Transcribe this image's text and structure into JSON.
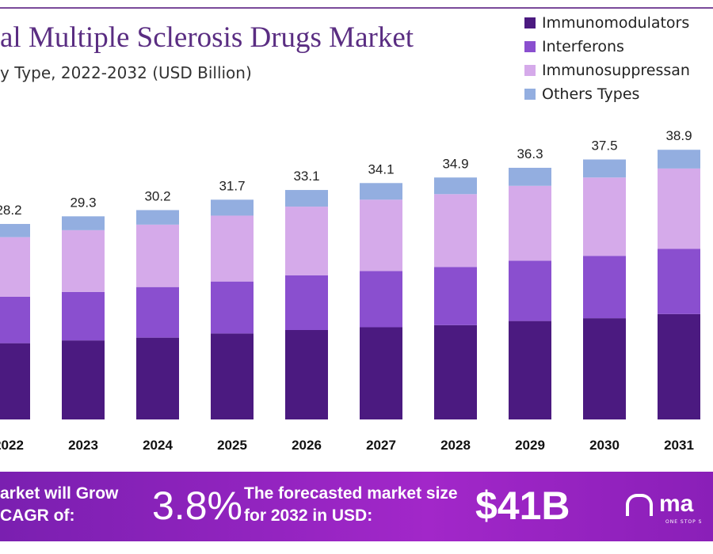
{
  "chart_data": {
    "type": "bar",
    "stacked": true,
    "title": "al Multiple Sclerosis Drugs Market",
    "subtitle": "y Type, 2022-2032 (USD Billion)",
    "categories": [
      "2022",
      "2023",
      "2024",
      "2025",
      "2026",
      "2027",
      "2028",
      "2029",
      "2030",
      "2031"
    ],
    "totals": [
      "28.2",
      "29.3",
      "30.2",
      "31.7",
      "33.1",
      "34.1",
      "34.9",
      "36.3",
      "37.5",
      "38.9"
    ],
    "series": [
      {
        "name": "Immunomodulators",
        "color": "#4b1a80",
        "values": [
          11.0,
          11.4,
          11.8,
          12.4,
          12.9,
          13.3,
          13.6,
          14.2,
          14.6,
          15.2
        ]
      },
      {
        "name": "Interferons",
        "color": "#8a4fcf",
        "values": [
          6.7,
          7.0,
          7.3,
          7.5,
          7.9,
          8.1,
          8.4,
          8.7,
          9.0,
          9.4
        ]
      },
      {
        "name": "Immunosuppressan",
        "color": "#d5aaea",
        "values": [
          8.6,
          8.9,
          9.0,
          9.5,
          9.9,
          10.3,
          10.5,
          10.8,
          11.3,
          11.6
        ]
      },
      {
        "name": "Others Types",
        "color": "#93aee0",
        "values": [
          1.9,
          2.0,
          2.1,
          2.3,
          2.4,
          2.4,
          2.4,
          2.6,
          2.6,
          2.7
        ]
      }
    ],
    "legend": "top-right",
    "grid": false,
    "ylim": [
      0,
      40
    ]
  },
  "footer": {
    "cagr_text": "arket will Grow\nCAGR of:",
    "cagr_value": "3.8%",
    "forecast_text": "The forecasted market size for 2032 in USD:",
    "forecast_value": "$41B",
    "logo_text": "ma",
    "logo_tagline": "ONE STOP S"
  }
}
